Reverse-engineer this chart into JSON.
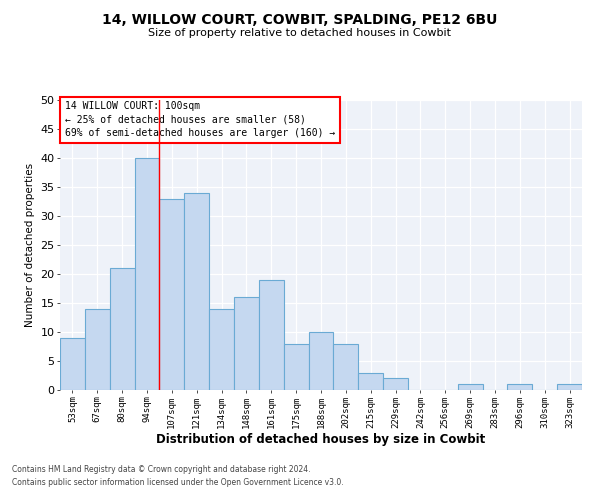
{
  "title1": "14, WILLOW COURT, COWBIT, SPALDING, PE12 6BU",
  "title2": "Size of property relative to detached houses in Cowbit",
  "xlabel": "Distribution of detached houses by size in Cowbit",
  "ylabel": "Number of detached properties",
  "categories": [
    "53sqm",
    "67sqm",
    "80sqm",
    "94sqm",
    "107sqm",
    "121sqm",
    "134sqm",
    "148sqm",
    "161sqm",
    "175sqm",
    "188sqm",
    "202sqm",
    "215sqm",
    "229sqm",
    "242sqm",
    "256sqm",
    "269sqm",
    "283sqm",
    "296sqm",
    "310sqm",
    "323sqm"
  ],
  "values": [
    9,
    14,
    21,
    40,
    33,
    34,
    14,
    16,
    19,
    8,
    10,
    8,
    3,
    2,
    0,
    0,
    1,
    0,
    1,
    0,
    1
  ],
  "bar_color": "#c5d8f0",
  "bar_edge_color": "#6aaad4",
  "red_line_x": 3.5,
  "annotation_title": "14 WILLOW COURT: 100sqm",
  "annotation_line1": "← 25% of detached houses are smaller (58)",
  "annotation_line2": "69% of semi-detached houses are larger (160) →",
  "ylim": [
    0,
    50
  ],
  "yticks": [
    0,
    5,
    10,
    15,
    20,
    25,
    30,
    35,
    40,
    45,
    50
  ],
  "footnote1": "Contains HM Land Registry data © Crown copyright and database right 2024.",
  "footnote2": "Contains public sector information licensed under the Open Government Licence v3.0.",
  "background_color": "#eef2f9"
}
